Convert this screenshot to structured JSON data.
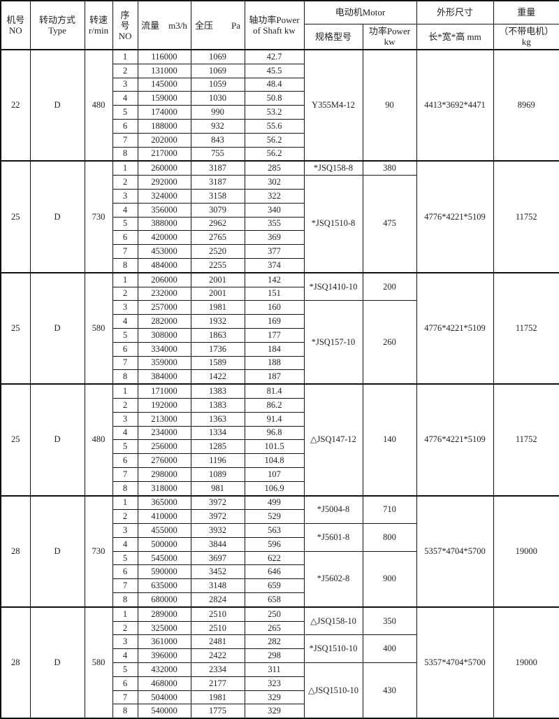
{
  "header": {
    "no": [
      "机号",
      "NO"
    ],
    "type": [
      "转动方式",
      "Type"
    ],
    "speed": [
      "转速",
      "r/min"
    ],
    "seq": [
      "序",
      "号",
      "NO"
    ],
    "flow": "流量　m3/h",
    "pressure": "全压　　Pa",
    "shaft_power": [
      "轴功率Power",
      "of Shaft  kw"
    ],
    "motor": "电动机Motor",
    "motor_model": "规格型号",
    "motor_power": [
      "功率Power",
      "kw"
    ],
    "dims": "外形尺寸",
    "dims_unit": "长*宽*高  mm",
    "weight": "重量",
    "weight_unit": [
      "（不带电机）",
      "kg"
    ]
  },
  "groups": [
    {
      "no": "22",
      "type": "D",
      "speed": "480",
      "dims": "4413*3692*4471",
      "weight": "8969",
      "rows": [
        [
          "1",
          "116000",
          "1069",
          "42.7"
        ],
        [
          "2",
          "131000",
          "1069",
          "45.5"
        ],
        [
          "3",
          "145000",
          "1059",
          "48.4"
        ],
        [
          "4",
          "159000",
          "1030",
          "50.8"
        ],
        [
          "5",
          "174000",
          "990",
          "53.2"
        ],
        [
          "6",
          "188000",
          "932",
          "55.6"
        ],
        [
          "7",
          "202000",
          "843",
          "56.2"
        ],
        [
          "8",
          "217000",
          "755",
          "56.2"
        ]
      ],
      "motors": [
        {
          "model": "Y355M4-12",
          "power": "90",
          "rows": 8
        }
      ]
    },
    {
      "no": "25",
      "type": "D",
      "speed": "730",
      "dims": "4776*4221*5109",
      "weight": "11752",
      "rows": [
        [
          "1",
          "260000",
          "3187",
          "285"
        ],
        [
          "2",
          "292000",
          "3187",
          "302"
        ],
        [
          "3",
          "324000",
          "3158",
          "322"
        ],
        [
          "4",
          "356000",
          "3079",
          "340"
        ],
        [
          "5",
          "388000",
          "2962",
          "355"
        ],
        [
          "6",
          "420000",
          "2765",
          "369"
        ],
        [
          "7",
          "453000",
          "2520",
          "377"
        ],
        [
          "8",
          "484000",
          "2255",
          "374"
        ]
      ],
      "motors": [
        {
          "model": "*JSQ158-8",
          "power": "380",
          "rows": 1
        },
        {
          "model": "*JSQ1510-8",
          "power": "475",
          "rows": 7
        }
      ]
    },
    {
      "no": "25",
      "type": "D",
      "speed": "580",
      "dims": "4776*4221*5109",
      "weight": "11752",
      "rows": [
        [
          "1",
          "206000",
          "2001",
          "142"
        ],
        [
          "2",
          "232000",
          "2001",
          "151"
        ],
        [
          "3",
          "257000",
          "1981",
          "160"
        ],
        [
          "4",
          "282000",
          "1932",
          "169"
        ],
        [
          "5",
          "308000",
          "1863",
          "177"
        ],
        [
          "6",
          "334000",
          "1736",
          "184"
        ],
        [
          "7",
          "359000",
          "1589",
          "188"
        ],
        [
          "8",
          "384000",
          "1422",
          "187"
        ]
      ],
      "motors": [
        {
          "model": "*JSQ1410-10",
          "power": "200",
          "rows": 2
        },
        {
          "model": "*JSQ157-10",
          "power": "260",
          "rows": 6
        }
      ]
    },
    {
      "no": "25",
      "type": "D",
      "speed": "480",
      "dims": "4776*4221*5109",
      "weight": "11752",
      "rows": [
        [
          "1",
          "171000",
          "1383",
          "81.4"
        ],
        [
          "2",
          "192000",
          "1383",
          "86.2"
        ],
        [
          "3",
          "213000",
          "1363",
          "91.4"
        ],
        [
          "4",
          "234000",
          "1334",
          "96.8"
        ],
        [
          "5",
          "256000",
          "1285",
          "101.5"
        ],
        [
          "6",
          "276000",
          "1196",
          "104.8"
        ],
        [
          "7",
          "298000",
          "1089",
          "107"
        ],
        [
          "8",
          "318000",
          "981",
          "106.9"
        ]
      ],
      "motors": [
        {
          "model": "△JSQ147-12",
          "power": "140",
          "rows": 8
        }
      ]
    },
    {
      "no": "28",
      "type": "D",
      "speed": "730",
      "dims": "5357*4704*5700",
      "weight": "19000",
      "rows": [
        [
          "1",
          "365000",
          "3972",
          "499"
        ],
        [
          "2",
          "410000",
          "3972",
          "529"
        ],
        [
          "3",
          "455000",
          "3932",
          "563"
        ],
        [
          "4",
          "500000",
          "3844",
          "596"
        ],
        [
          "5",
          "545000",
          "3697",
          "622"
        ],
        [
          "6",
          "590000",
          "3452",
          "646"
        ],
        [
          "7",
          "635000",
          "3148",
          "659"
        ],
        [
          "8",
          "680000",
          "2824",
          "658"
        ]
      ],
      "motors": [
        {
          "model": "*J5004-8",
          "power": "710",
          "rows": 2
        },
        {
          "model": "*J5601-8",
          "power": "800",
          "rows": 2
        },
        {
          "model": "*J5602-8",
          "power": "900",
          "rows": 4
        }
      ]
    },
    {
      "no": "28",
      "type": "D",
      "speed": "580",
      "dims": "5357*4704*5700",
      "weight": "19000",
      "rows": [
        [
          "1",
          "289000",
          "2510",
          "250"
        ],
        [
          "2",
          "325000",
          "2510",
          "265"
        ],
        [
          "3",
          "361000",
          "2481",
          "282"
        ],
        [
          "4",
          "396000",
          "2422",
          "298"
        ],
        [
          "5",
          "432000",
          "2334",
          "311"
        ],
        [
          "6",
          "468000",
          "2177",
          "323"
        ],
        [
          "7",
          "504000",
          "1981",
          "329"
        ],
        [
          "8",
          "540000",
          "1775",
          "329"
        ]
      ],
      "motors": [
        {
          "model": "△JSQ158-10",
          "power": "350",
          "rows": 2
        },
        {
          "model": "*JSQ1510-10",
          "power": "400",
          "rows": 2
        },
        {
          "model": "△JSQ1510-10",
          "power": "430",
          "rows": 4
        }
      ]
    }
  ]
}
